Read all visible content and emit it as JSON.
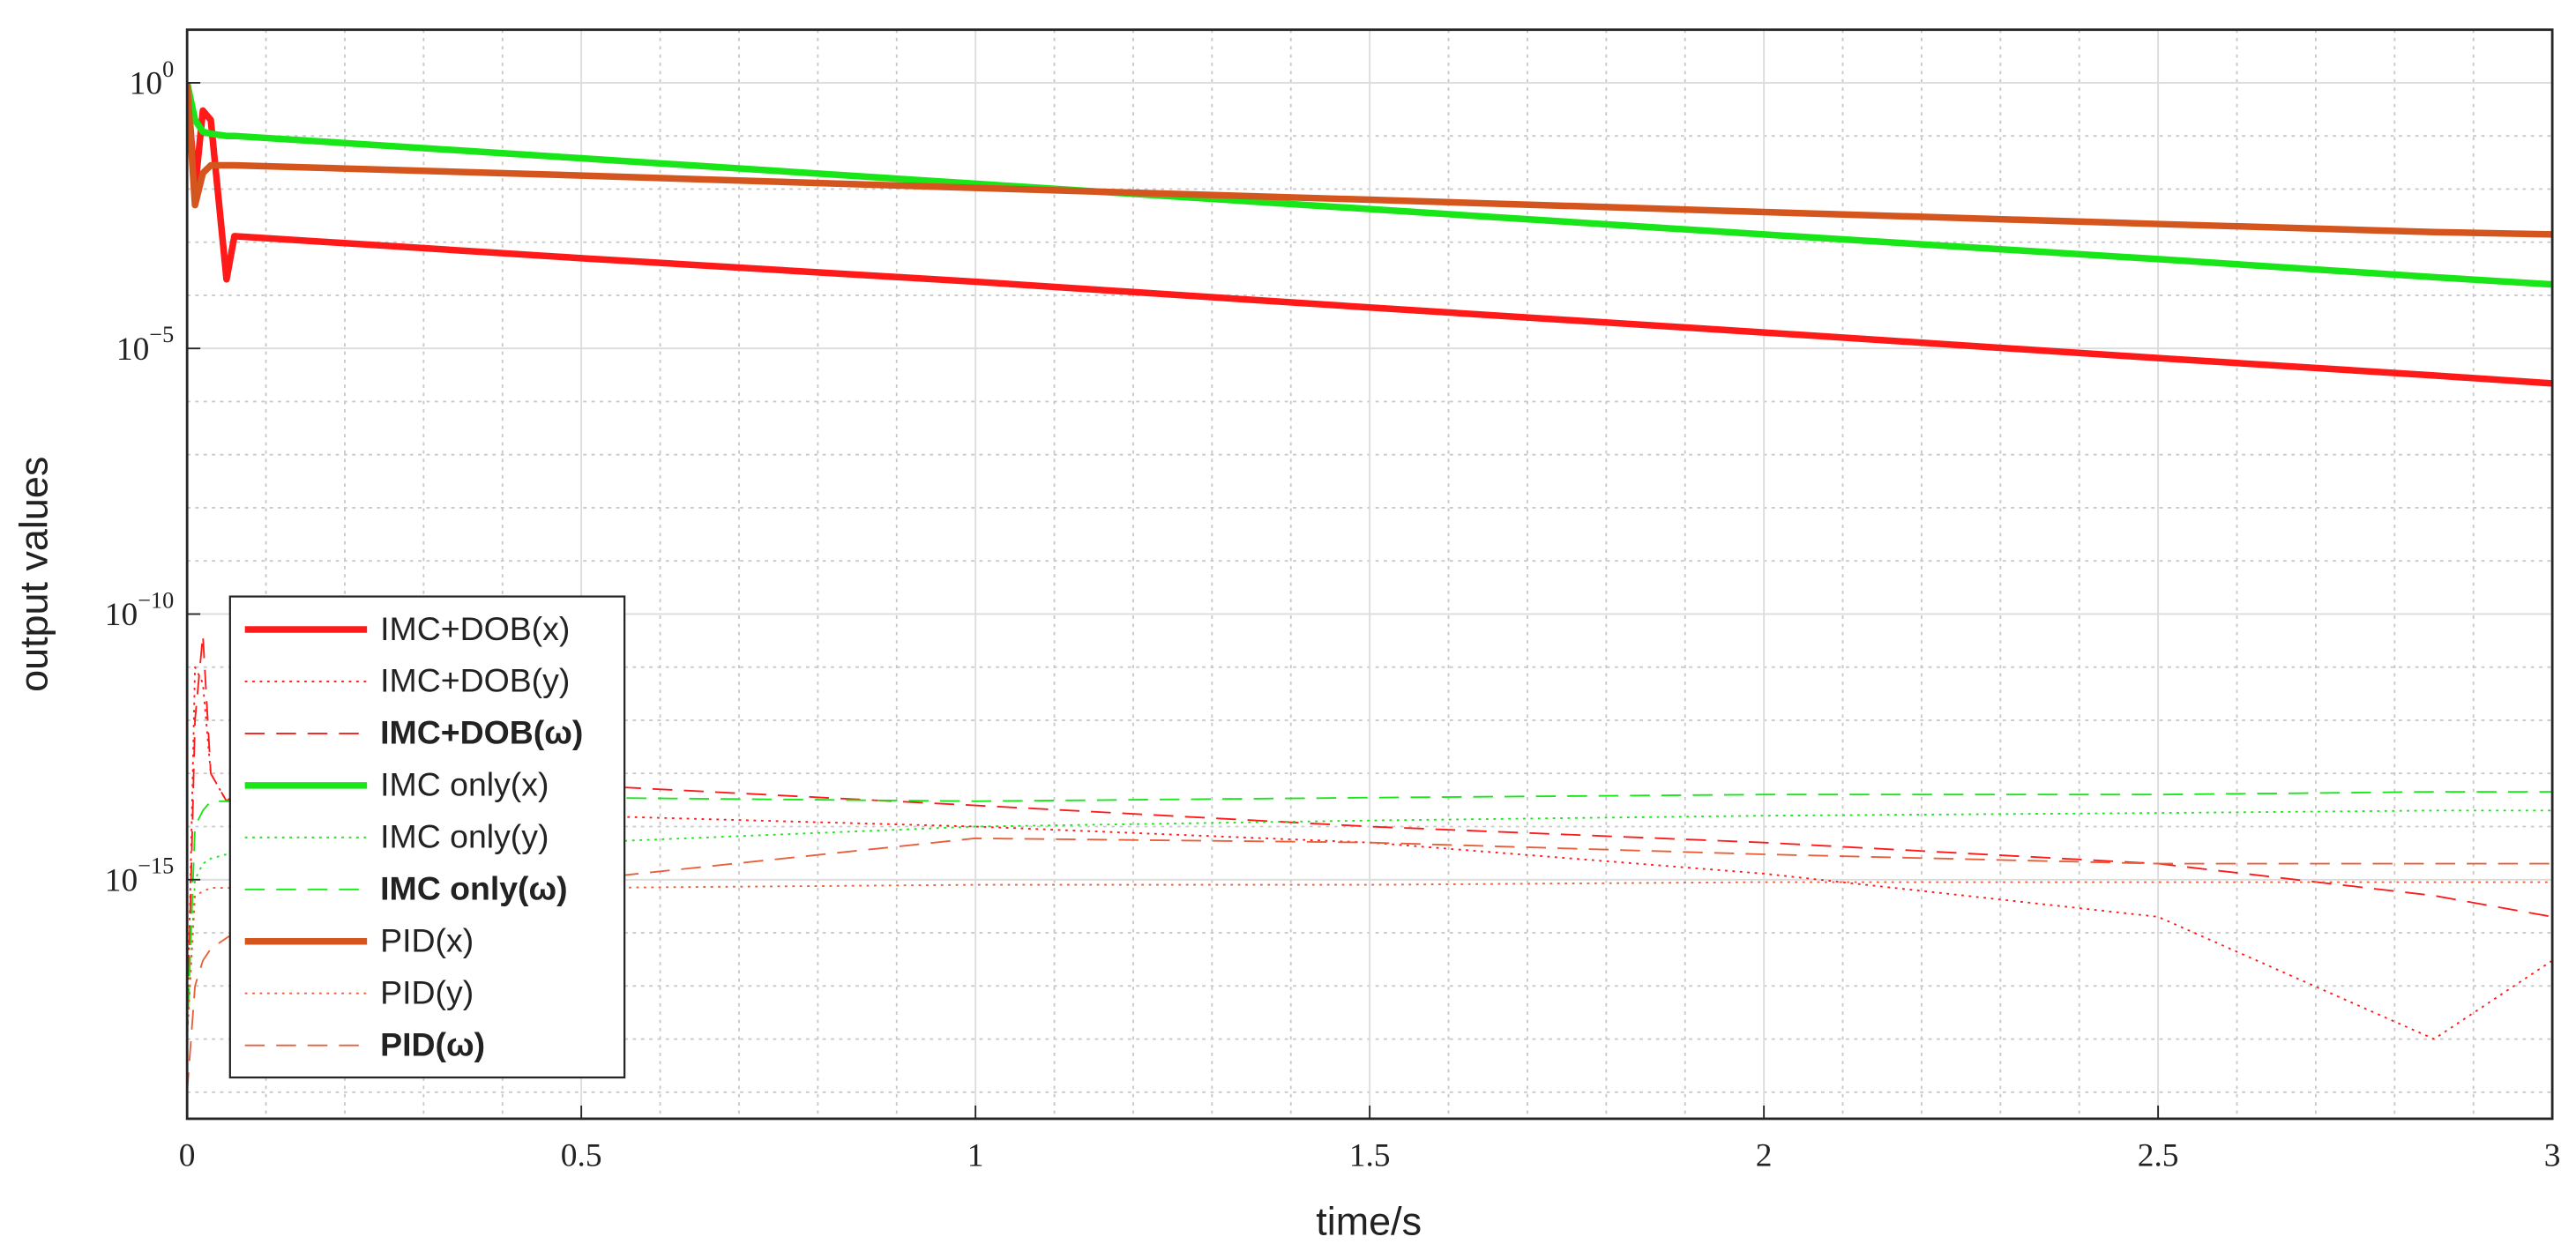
{
  "chart_data": {
    "type": "line",
    "x_label": "time/s",
    "y_label": "output values",
    "x": [
      0,
      0.01,
      0.02,
      0.03,
      0.05,
      0.06,
      0.5,
      1,
      1.5,
      2,
      2.5,
      2.85,
      3
    ],
    "xlim": [
      0,
      3
    ],
    "xticks": [
      0,
      0.5,
      1,
      1.5,
      2,
      2.5,
      3
    ],
    "ylim": [
      3.16e-20,
      10
    ],
    "log_y": true,
    "yticks": [
      {
        "value": 1e-15,
        "label": "10^−15"
      },
      {
        "value": 1e-10,
        "label": "10^−10"
      },
      {
        "value": 1e-05,
        "label": "10^−5"
      },
      {
        "value": 1,
        "label": "10^0"
      }
    ],
    "grid": true,
    "minor_grid": true,
    "legend_position": "lower left",
    "series": [
      {
        "name": "IMC+DOB(x)",
        "color": "#ff1a1a",
        "style": "solid",
        "linewidth": 4,
        "values": [
          1,
          0.01,
          0.3,
          0.2,
          0.0002,
          0.0013,
          0.0005,
          0.00018,
          5.9e-05,
          2e-05,
          6.6e-06,
          3.1e-06,
          2.2e-06
        ]
      },
      {
        "name": "IMC+DOB(y)",
        "color": "#ff1a1a",
        "style": "dotted",
        "linewidth": 1,
        "values": [
          1e-18,
          1e-11,
          5e-12,
          1e-13,
          3e-14,
          3e-14,
          1.6e-14,
          1e-14,
          5e-15,
          1.3e-15,
          2e-16,
          1e-18,
          3e-17
        ]
      },
      {
        "name": "IMC+DOB(ω)",
        "color": "#ff1a1a",
        "style": "dashed",
        "linewidth": 1,
        "legend_bold": true,
        "values": [
          1e-18,
          1e-12,
          4e-11,
          1e-13,
          3e-14,
          4e-14,
          6e-14,
          2.5e-14,
          1e-14,
          5e-15,
          2e-15,
          5e-16,
          2e-16
        ]
      },
      {
        "name": "IMC only(x)",
        "color": "#19e619",
        "style": "solid",
        "linewidth": 4,
        "values": [
          1,
          0.2,
          0.12,
          0.11,
          0.1,
          0.1,
          0.038,
          0.0126,
          0.0042,
          0.0014,
          0.00048,
          0.00022,
          0.00016
        ]
      },
      {
        "name": "IMC only(y)",
        "color": "#19e619",
        "style": "dotted",
        "linewidth": 1,
        "values": [
          1e-18,
          1e-15,
          2e-15,
          2.5e-15,
          3e-15,
          3e-15,
          5e-15,
          1e-14,
          1.3e-14,
          1.6e-14,
          1.8e-14,
          2e-14,
          2e-14
        ]
      },
      {
        "name": "IMC only(ω)",
        "color": "#19e619",
        "style": "dashed",
        "linewidth": 1,
        "legend_bold": true,
        "values": [
          1e-18,
          1e-14,
          2e-14,
          3e-14,
          3e-14,
          3e-14,
          3.5e-14,
          3e-14,
          3.5e-14,
          4e-14,
          4e-14,
          4.5e-14,
          4.5e-14
        ]
      },
      {
        "name": "PID(x)",
        "color": "#d4561e",
        "style": "solid",
        "linewidth": 4,
        "values": [
          1,
          0.005,
          0.02,
          0.028,
          0.028,
          0.028,
          0.018,
          0.0105,
          0.0063,
          0.0037,
          0.0022,
          0.00155,
          0.0014
        ]
      },
      {
        "name": "PID(y)",
        "color": "#e8603a",
        "style": "dotted",
        "linewidth": 1,
        "values": [
          1e-18,
          5e-16,
          6e-16,
          7e-16,
          7e-16,
          7e-16,
          7e-16,
          8e-16,
          8e-16,
          9e-16,
          9e-16,
          9e-16,
          9e-16
        ]
      },
      {
        "name": "PID(ω)",
        "color": "#e8603a",
        "style": "dashed",
        "linewidth": 1,
        "legend_bold": true,
        "values": [
          1e-19,
          1e-17,
          3e-17,
          5e-17,
          8e-17,
          1e-16,
          1e-15,
          6e-15,
          5e-15,
          3e-15,
          2e-15,
          2e-15,
          2e-15
        ]
      }
    ]
  }
}
